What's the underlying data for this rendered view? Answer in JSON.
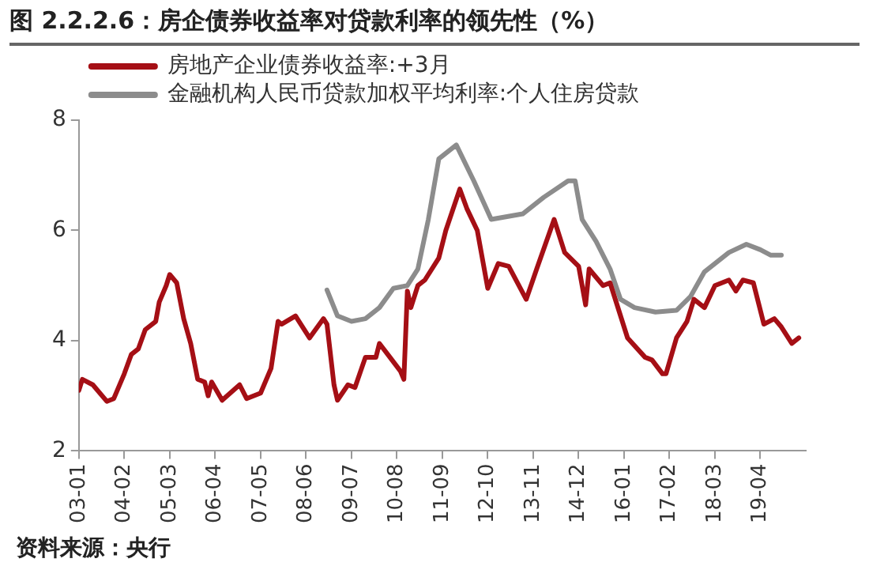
{
  "chart_data": {
    "type": "line",
    "title": "图 2.2.2.6：房企债券收益率对贷款利率的领先性（%）",
    "annotations": [
      "资料来源：央行"
    ],
    "xlim": [
      "2003-01",
      "2020-05"
    ],
    "xticks": [
      {
        "value": "2003-01",
        "label": "03-01"
      },
      {
        "value": "2004-02",
        "label": "04-02"
      },
      {
        "value": "2005-03",
        "label": "05-03"
      },
      {
        "value": "2006-04",
        "label": "06-04"
      },
      {
        "value": "2007-05",
        "label": "07-05"
      },
      {
        "value": "2008-06",
        "label": "08-06"
      },
      {
        "value": "2009-07",
        "label": "09-07"
      },
      {
        "value": "2010-08",
        "label": "10-08"
      },
      {
        "value": "2011-09",
        "label": "11-09"
      },
      {
        "value": "2012-10",
        "label": "12-10"
      },
      {
        "value": "2013-11",
        "label": "13-11"
      },
      {
        "value": "2014-12",
        "label": "14-12"
      },
      {
        "value": "2016-01",
        "label": "16-01"
      },
      {
        "value": "2017-02",
        "label": "17-02"
      },
      {
        "value": "2018-03",
        "label": "18-03"
      },
      {
        "value": "2019-04",
        "label": "19-04"
      }
    ],
    "ylim": [
      2,
      8
    ],
    "yticks": [
      2,
      4,
      6,
      8
    ],
    "grid": false,
    "legend": "top left",
    "marker": "none",
    "line_style": "solid",
    "series": [
      {
        "name": "房地产企业债券收益率:+3月",
        "color": "#a50f15",
        "x": [
          "2003-01",
          "2003-02",
          "2003-05",
          "2003-09",
          "2003-11",
          "2004-02",
          "2004-04",
          "2004-06",
          "2004-08",
          "2004-11",
          "2004-12",
          "2005-02",
          "2005-03",
          "2005-05",
          "2005-07",
          "2005-09",
          "2005-11",
          "2006-01",
          "2006-02",
          "2006-03",
          "2006-06",
          "2006-11",
          "2007-01",
          "2007-05",
          "2007-08",
          "2007-10",
          "2007-11",
          "2008-03",
          "2008-04",
          "2008-07",
          "2008-11",
          "2008-12",
          "2009-02",
          "2009-03",
          "2009-06",
          "2009-08",
          "2009-11",
          "2010-02",
          "2010-03",
          "2010-06",
          "2010-09",
          "2010-10",
          "2010-11",
          "2010-12",
          "2011-02",
          "2011-04",
          "2011-08",
          "2011-10",
          "2012-02",
          "2012-04",
          "2012-07",
          "2012-10",
          "2013-01",
          "2013-04",
          "2013-09",
          "2013-12",
          "2014-05",
          "2014-08",
          "2014-12",
          "2015-02",
          "2015-03",
          "2015-07",
          "2015-09",
          "2016-02",
          "2016-07",
          "2016-09",
          "2016-12",
          "2017-01",
          "2017-04",
          "2017-07",
          "2017-09",
          "2017-12",
          "2018-03",
          "2018-07",
          "2018-09",
          "2018-11",
          "2019-02",
          "2019-05",
          "2019-08",
          "2019-10",
          "2020-01",
          "2020-03"
        ],
        "values": [
          3.1,
          3.3,
          3.2,
          2.9,
          2.95,
          3.4,
          3.75,
          3.85,
          4.2,
          4.35,
          4.7,
          5.0,
          5.2,
          5.05,
          4.4,
          3.95,
          3.3,
          3.25,
          3.0,
          3.25,
          2.92,
          3.2,
          2.95,
          3.05,
          3.5,
          4.35,
          4.3,
          4.45,
          4.35,
          4.05,
          4.4,
          4.3,
          3.2,
          2.92,
          3.2,
          3.15,
          3.7,
          3.7,
          3.95,
          3.7,
          3.45,
          3.3,
          4.9,
          4.6,
          5.0,
          5.1,
          5.5,
          6.0,
          6.75,
          6.4,
          6.0,
          4.95,
          5.4,
          5.35,
          4.75,
          5.3,
          6.2,
          5.6,
          5.35,
          4.65,
          5.3,
          5.0,
          5.05,
          4.05,
          3.7,
          3.65,
          3.4,
          3.4,
          4.05,
          4.35,
          4.75,
          4.6,
          5.0,
          5.1,
          4.9,
          5.1,
          5.05,
          4.3,
          4.4,
          4.25,
          3.95,
          4.05
        ]
      },
      {
        "name": "金融机构人民币贷款加权平均利率:个人住房贷款",
        "color": "#8c8c8c",
        "x": [
          "2008-12",
          "2009-03",
          "2009-07",
          "2009-11",
          "2010-03",
          "2010-07",
          "2010-11",
          "2011-02",
          "2011-05",
          "2011-08",
          "2012-01",
          "2012-06",
          "2012-11",
          "2013-08",
          "2014-02",
          "2014-09",
          "2014-11",
          "2015-01",
          "2015-05",
          "2015-09",
          "2015-12",
          "2016-04",
          "2016-10",
          "2017-04",
          "2017-08",
          "2017-12",
          "2018-07",
          "2018-12",
          "2019-04",
          "2019-07",
          "2019-10"
        ],
        "values": [
          4.92,
          4.45,
          4.35,
          4.4,
          4.6,
          4.95,
          5.0,
          5.3,
          6.2,
          7.3,
          7.55,
          6.9,
          6.2,
          6.3,
          6.6,
          6.9,
          6.9,
          6.2,
          5.8,
          5.3,
          4.75,
          4.6,
          4.52,
          4.55,
          4.8,
          5.25,
          5.6,
          5.75,
          5.65,
          5.55,
          5.55
        ]
      }
    ]
  }
}
